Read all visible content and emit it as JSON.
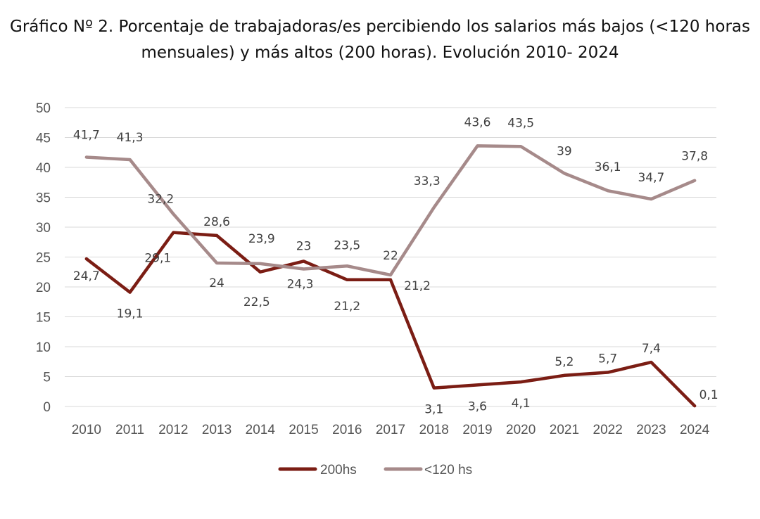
{
  "title_line1": "Gráfico Nº 2. Porcentaje de trabajadoras/es percibiendo los salarios más bajos (<120 horas",
  "title_line2": "mensuales) y más altos (200 horas).  Evolución 2010- 2024",
  "chart_data": {
    "type": "line",
    "title": "Gráfico Nº 2. Porcentaje de trabajadoras/es percibiendo los salarios más bajos (<120 horas mensuales) y más altos (200 horas).  Evolución 2010- 2024",
    "xlabel": "",
    "ylabel": "",
    "ylim": [
      0,
      50
    ],
    "yticks": [
      0,
      5,
      10,
      15,
      20,
      25,
      30,
      35,
      40,
      45,
      50
    ],
    "grid": true,
    "legend_position": "bottom",
    "categories": [
      "2010",
      "2011",
      "2012",
      "2013",
      "2014",
      "2015",
      "2016",
      "2017",
      "2018",
      "2019",
      "2020",
      "2021",
      "2022",
      "2023",
      "2024"
    ],
    "series": [
      {
        "name": "200hs",
        "color": "#7b1d14",
        "values": [
          24.7,
          19.1,
          29.1,
          28.6,
          22.5,
          24.3,
          21.2,
          21.2,
          3.1,
          3.6,
          4.1,
          5.2,
          5.7,
          7.4,
          0.1
        ],
        "labels": [
          "24,7",
          "19,1",
          "29,1",
          "28,6",
          "22,5",
          "24,3",
          "21,2",
          "21,2",
          "3,1",
          "3,6",
          "4,1",
          "5,2",
          "5,7",
          "7,4",
          "0,1"
        ]
      },
      {
        "name": "<120 hs",
        "color": "#a68a8a",
        "values": [
          41.7,
          41.3,
          32.2,
          24,
          23.9,
          23,
          23.5,
          22,
          33.3,
          43.6,
          43.5,
          39,
          36.1,
          34.7,
          37.8
        ],
        "labels": [
          "41,7",
          "41,3",
          "32,2",
          "24",
          "23,9",
          "23",
          "23,5",
          "22",
          "33,3",
          "43,6",
          "43,5",
          "39",
          "36,1",
          "34,7",
          "37,8"
        ]
      }
    ]
  }
}
